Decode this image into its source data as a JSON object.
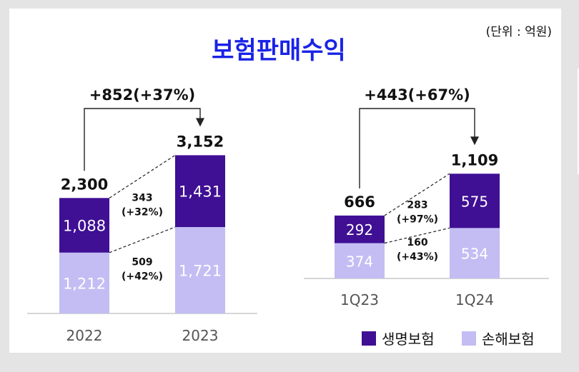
{
  "title": "보험판매수익",
  "unit": "(단위 : 억원)",
  "colors": {
    "life": "#3f0f94",
    "nonlife": "#c3bdf4",
    "title": "#1a23e6",
    "label_on_dark": "#ffffff",
    "text": "#111111"
  },
  "legend": [
    {
      "key": "life",
      "label": "생명보험"
    },
    {
      "key": "nonlife",
      "label": "손해보험"
    }
  ],
  "chart_data": [
    {
      "type": "bar",
      "stacked": true,
      "categories": [
        "2022",
        "2023"
      ],
      "series": [
        {
          "name": "손해보험",
          "key": "nonlife",
          "values": [
            1212,
            1721
          ],
          "labels": [
            "1,212",
            "1,721"
          ]
        },
        {
          "name": "생명보험",
          "key": "life",
          "values": [
            1088,
            1431
          ],
          "labels": [
            "1,088",
            "1,431"
          ]
        }
      ],
      "totals": [
        "2,300",
        "3,152"
      ],
      "total_change": "+852(+37%)",
      "segment_changes": {
        "life": [
          "343",
          "(+32%)"
        ],
        "nonlife": [
          "509",
          "(+42%)"
        ]
      }
    },
    {
      "type": "bar",
      "stacked": true,
      "categories": [
        "1Q23",
        "1Q24"
      ],
      "series": [
        {
          "name": "손해보험",
          "key": "nonlife",
          "values": [
            374,
            534
          ],
          "labels": [
            "374",
            "534"
          ]
        },
        {
          "name": "생명보험",
          "key": "life",
          "values": [
            292,
            575
          ],
          "labels": [
            "292",
            "575"
          ]
        }
      ],
      "totals": [
        "666",
        "1,109"
      ],
      "total_change": "+443(+67%)",
      "segment_changes": {
        "life": [
          "283",
          "(+97%)"
        ],
        "nonlife": [
          "160",
          "(+43%)"
        ]
      }
    }
  ]
}
